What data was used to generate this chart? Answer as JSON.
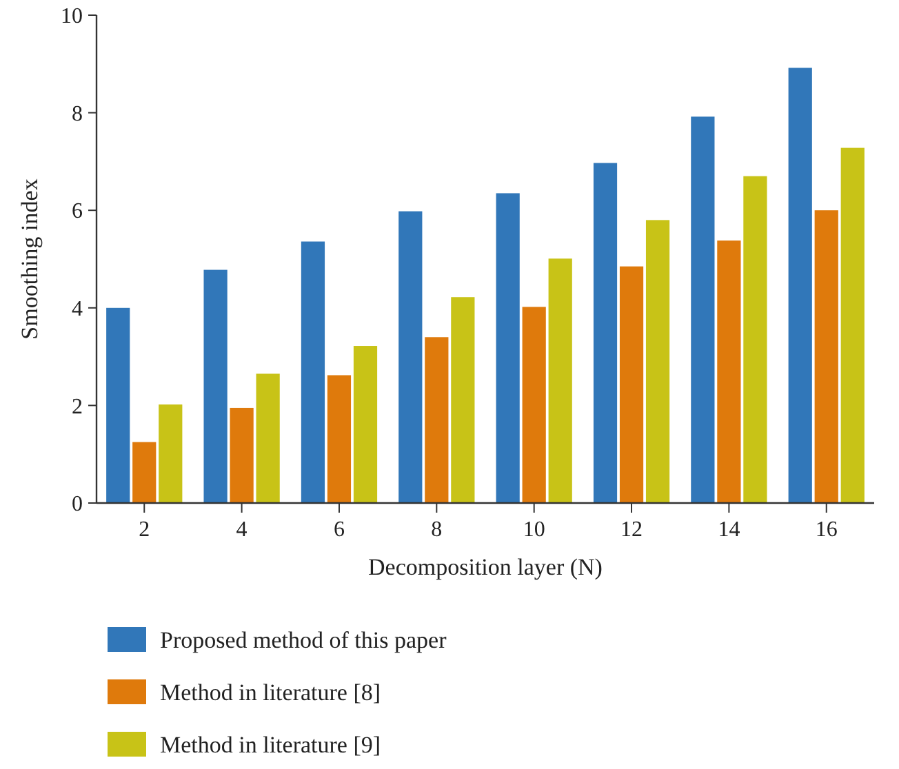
{
  "chart_data": {
    "type": "bar",
    "xlabel": "Decomposition layer (N)",
    "ylabel": "Smoothing index",
    "categories": [
      "2",
      "4",
      "6",
      "8",
      "10",
      "12",
      "14",
      "16"
    ],
    "series": [
      {
        "name": "Proposed method of this paper",
        "color": "#3177b9",
        "values": [
          4.0,
          4.78,
          5.36,
          5.98,
          6.35,
          6.97,
          7.92,
          8.92
        ]
      },
      {
        "name": "Method in literature [8]",
        "color": "#df7a0c",
        "values": [
          1.25,
          1.95,
          2.62,
          3.4,
          4.02,
          4.85,
          5.38,
          6.0
        ]
      },
      {
        "name": "Method in literature [9]",
        "color": "#c8c317",
        "values": [
          2.02,
          2.65,
          3.22,
          4.22,
          5.01,
          5.8,
          6.7,
          7.28
        ]
      }
    ],
    "ylim": [
      0,
      10
    ],
    "yticks": [
      0,
      2,
      4,
      6,
      8,
      10
    ],
    "grid": false,
    "legend": "bottom"
  }
}
